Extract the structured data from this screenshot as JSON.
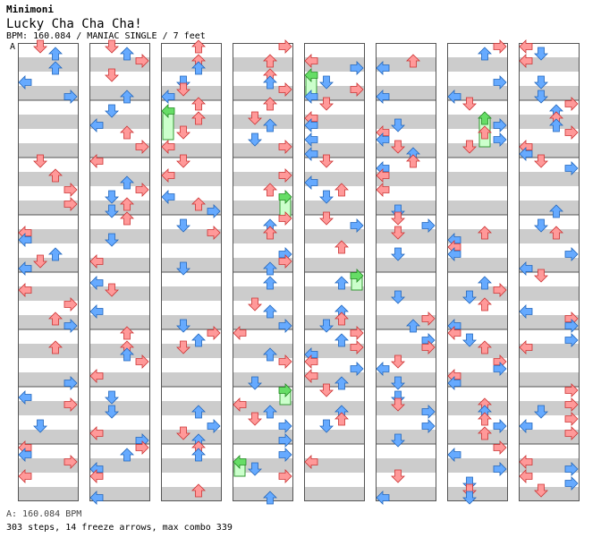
{
  "header": {
    "artist": "Minimoni",
    "title": "Lucky Cha Cha Cha!",
    "info": "BPM: 160.084 / MANIAC SINGLE / 7 feet",
    "marker": "A"
  },
  "footer": {
    "bpm": "A: 160.084 BPM",
    "stats": "303 steps, 14 freeze arrows, max combo 339"
  },
  "colors": {
    "background": "#ffffff",
    "stripe": "#cccccc",
    "border": "#555555",
    "quarter_arrow": "#ff9999",
    "eighth_arrow": "#66aaff",
    "freeze_body": "#ccffcc",
    "freeze_head": "#66dd66",
    "special_arrow": "#ff99ff"
  },
  "chart_data": {
    "type": "step-chart",
    "columns": 8,
    "measures_per_column": 8,
    "lanes": [
      "left",
      "down",
      "up",
      "right"
    ],
    "beat_stripes": true,
    "note_pattern_seed": 160084
  }
}
